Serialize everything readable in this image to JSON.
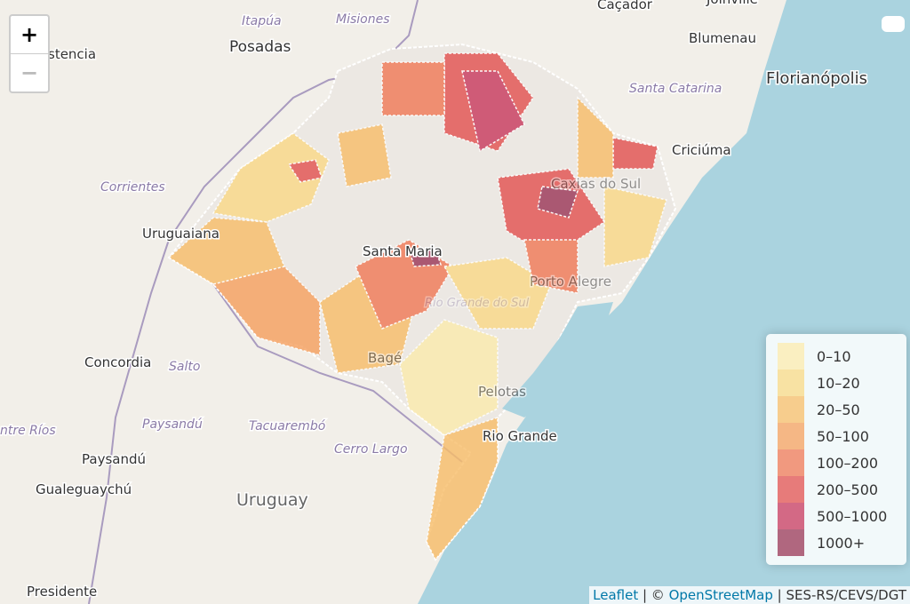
{
  "zoom": {
    "in": "+",
    "out": "−"
  },
  "labels": [
    "Caçador",
    "Joinville",
    "Blumenau",
    "Florianópolis",
    "Itapúa",
    "Misiones",
    "Posadas",
    "stencia",
    "Santa Catarina",
    "Criciúma",
    "Corrientes",
    "Uruguaiana",
    "Santa Maria",
    "Caxias do Sul",
    "Porto Alegre",
    "Concordia",
    "Salto",
    "Bagé",
    "Pelotas",
    "Rio Grande",
    "Paysandú",
    "Tacuarembó",
    "ntre Ríos",
    "Paysandú",
    "Cerro Largo",
    "Gualeguaychú",
    "Uruguay",
    "Presidente",
    "Rio Grande do Sul"
  ],
  "legend": [
    {
      "label": "0–10",
      "color": "#fcebad"
    },
    {
      "label": "10–20",
      "color": "#fad986"
    },
    {
      "label": "20–50",
      "color": "#f8bd68"
    },
    {
      "label": "50–100",
      "color": "#f6a05e"
    },
    {
      "label": "100–200",
      "color": "#f07855"
    },
    {
      "label": "200–500",
      "color": "#e3504f"
    },
    {
      "label": "500–1000",
      "color": "#c8385d"
    },
    {
      "label": "1000+",
      "color": "#9a3556"
    }
  ],
  "attribution": {
    "leaflet": "Leaflet",
    "sep1": " | © ",
    "osm": "OpenStreetMap",
    "source": " | SES-RS/CEVS/DGT"
  }
}
